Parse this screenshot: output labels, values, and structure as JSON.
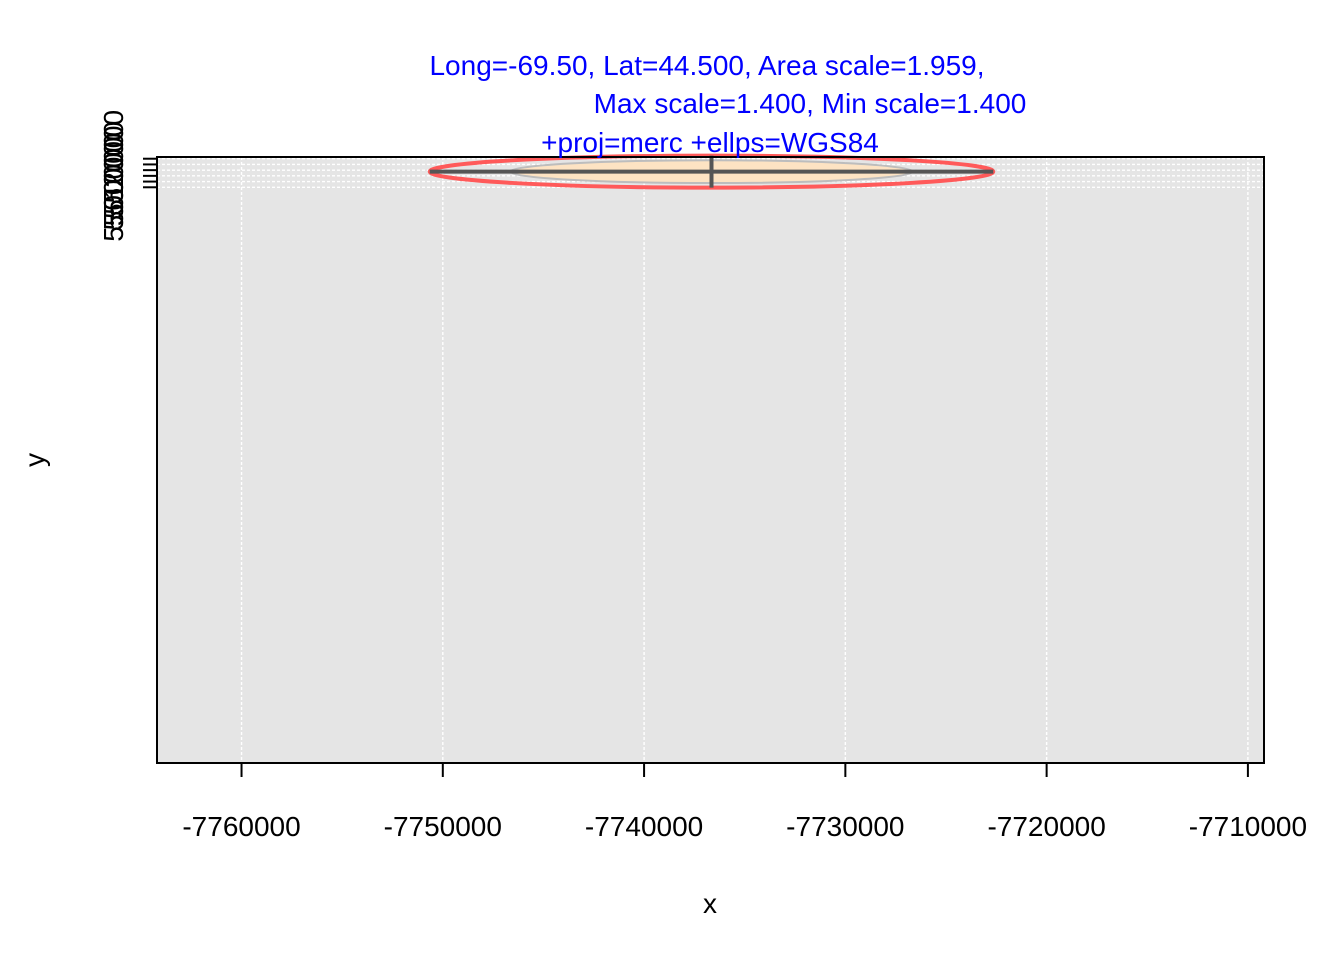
{
  "chart_data": {
    "type": "scatter",
    "title_lines": [
      "Long=-69.50, Lat=44.500, Area scale=1.959,",
      "Max scale=1.400, Min scale=1.400",
      "+proj=merc +ellps=WGS84"
    ],
    "xlabel": "x",
    "ylabel": "y",
    "xlim": [
      -7764200,
      -7709200
    ],
    "ylim": [
      4996200,
      5526500
    ],
    "x_ticks": [
      -7760000,
      -7750000,
      -7740000,
      -7730000,
      -7720000,
      -7710000
    ],
    "x_tick_labels": [
      "-7760000",
      "-7750000",
      "-7740000",
      "-7730000",
      "-7720000",
      "-7710000"
    ],
    "y_ticks": [
      5500000,
      5510000,
      5520000
    ],
    "y_tick_labels": [
      "5500000",
      "5510000",
      "5520000"
    ],
    "y_minor_ticks": [
      5505000,
      5515000,
      5525000
    ],
    "grid": true,
    "colors": {
      "panel_background": "#e5e5e5",
      "grid": "#ffffff",
      "title": "#0000ff",
      "indicatrix_fill": "#fde3c3",
      "indicatrix_stroke": "#bdbdbd",
      "scaled_circle": "#ff5a5a",
      "cross_lines": "#555555"
    },
    "center": {
      "x": -7736650,
      "y": 5513700
    },
    "reference_circle": {
      "radius": 10000
    },
    "scaled_circle": {
      "radius": 14000
    },
    "horizontal_segment": {
      "x": [
        -7750650,
        -7722650
      ],
      "y": 5513700
    },
    "vertical_segment": {
      "x": -7736650,
      "y": [
        5499700,
        5527700
      ]
    }
  }
}
